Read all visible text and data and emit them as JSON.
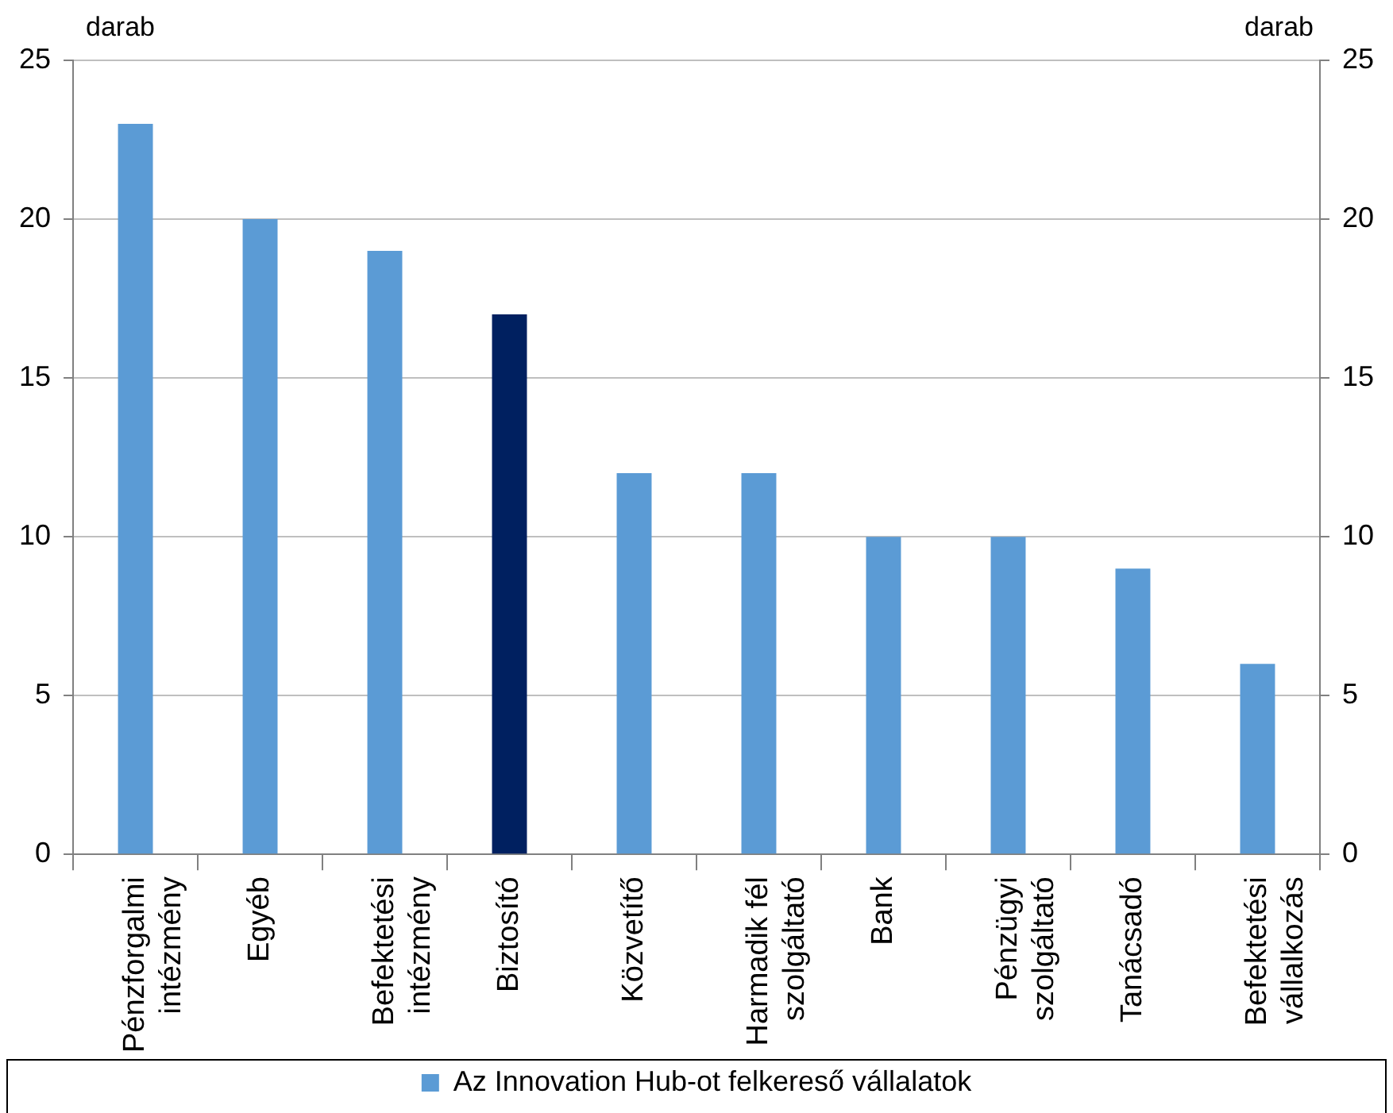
{
  "chart_data": {
    "type": "bar",
    "ylabel": "darab",
    "y2label": "darab",
    "categories": [
      "Pénzforgalmi intézmény",
      "Egyéb",
      "Befektetési intézmény",
      "Biztosító",
      "Közvetítő",
      "Harmadik fél szolgáltató",
      "Bank",
      "Pénzügyi szolgáltató",
      "Tanácsadó",
      "Befektetési vállalkozás"
    ],
    "series": [
      {
        "name": "Az Innovation Hub-ot felkereső vállalatok",
        "color": "#5b9bd5",
        "colors": [
          "#5b9bd5",
          "#5b9bd5",
          "#5b9bd5",
          "#002060",
          "#5b9bd5",
          "#5b9bd5",
          "#5b9bd5",
          "#5b9bd5",
          "#5b9bd5",
          "#5b9bd5"
        ],
        "values": [
          23,
          20,
          19,
          17,
          12,
          12,
          10,
          10,
          9,
          6
        ]
      }
    ],
    "ylim": [
      0,
      25
    ],
    "yticks": [
      0,
      5,
      10,
      15,
      20,
      25
    ],
    "y2lim": [
      0,
      25
    ],
    "y2ticks": [
      0,
      5,
      10,
      15,
      20,
      25
    ],
    "grid": "y",
    "legend": "bottom"
  }
}
